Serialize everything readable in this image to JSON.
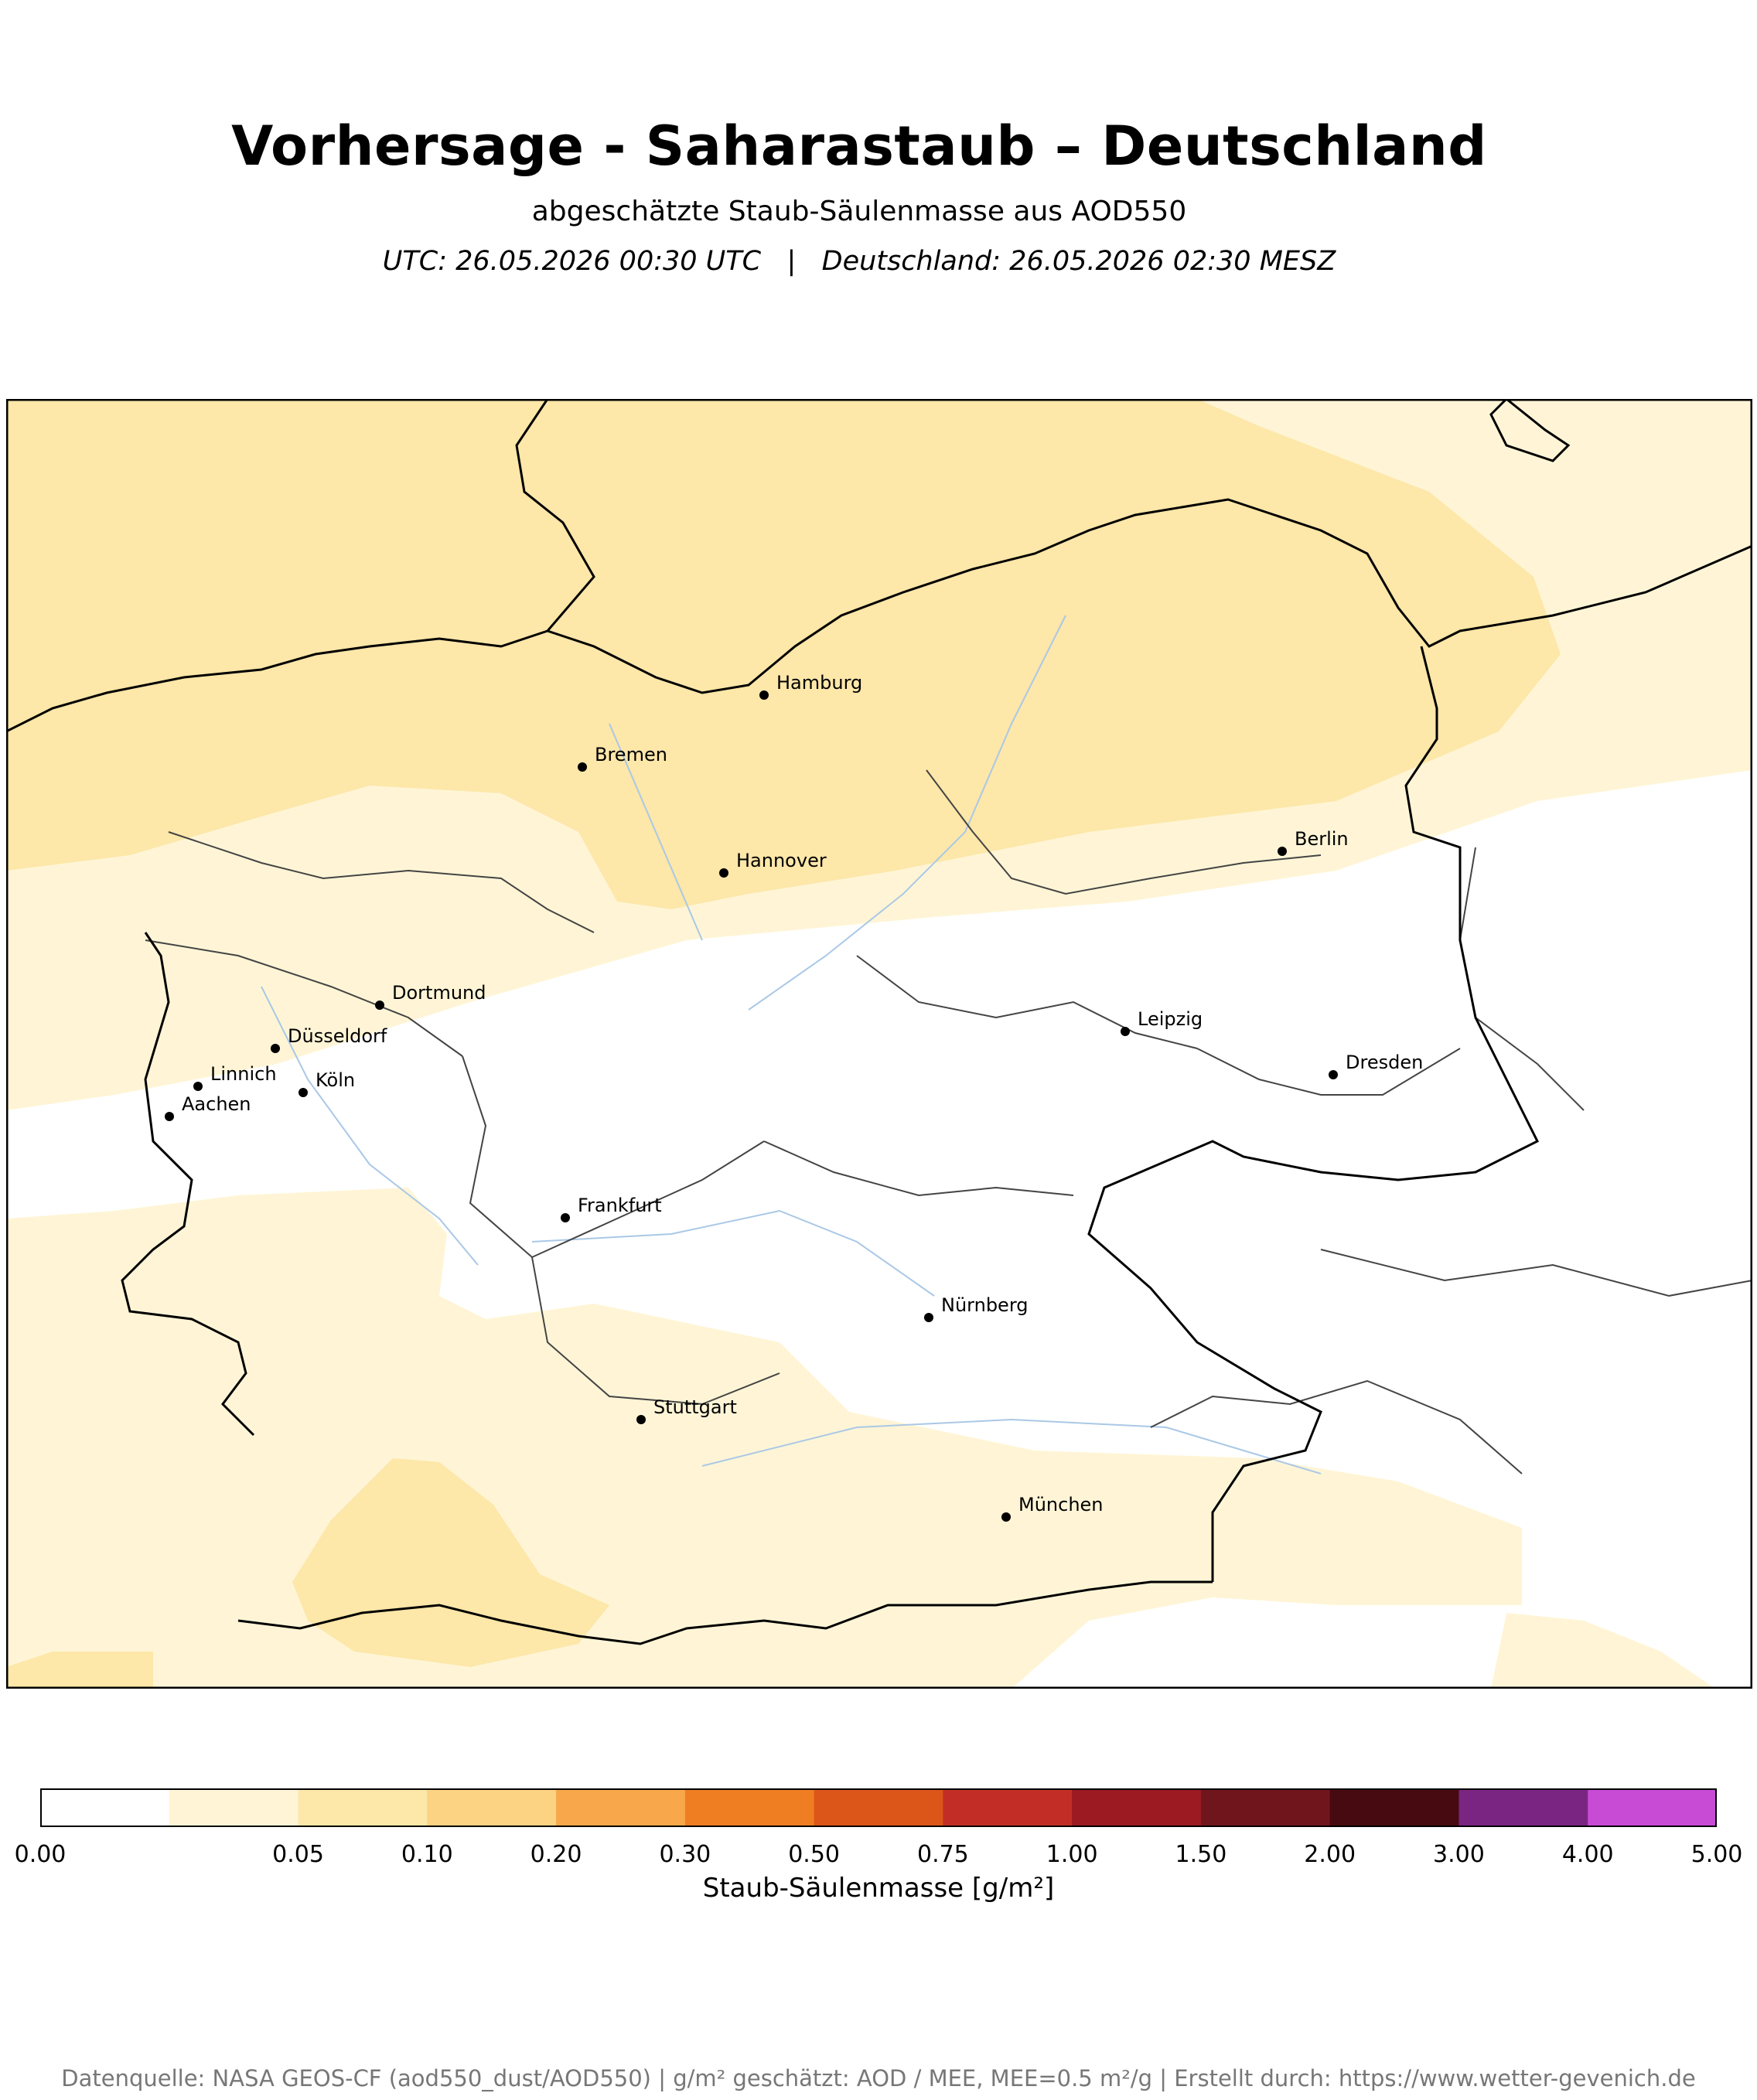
{
  "header": {
    "title": "Vorhersage - Saharastaub – Deutschland",
    "subtitle": "abgeschätzte Staub-Säulenmasse aus AOD550",
    "time_line": "UTC: 26.05.2026 00:30 UTC   |   Deutschland: 26.05.2026 02:30 MESZ"
  },
  "map": {
    "cities": [
      {
        "name": "Hamburg"
      },
      {
        "name": "Bremen"
      },
      {
        "name": "Hannover"
      },
      {
        "name": "Berlin"
      },
      {
        "name": "Dortmund"
      },
      {
        "name": "Düsseldorf"
      },
      {
        "name": "Linnich"
      },
      {
        "name": "Köln"
      },
      {
        "name": "Aachen"
      },
      {
        "name": "Leipzig"
      },
      {
        "name": "Dresden"
      },
      {
        "name": "Frankfurt"
      },
      {
        "name": "Nürnberg"
      },
      {
        "name": "Stuttgart"
      },
      {
        "name": "München"
      }
    ],
    "colors": {
      "level_1": "#fff5d6",
      "level_2": "#fde7a9",
      "border": "#000000",
      "admin_border": "#444444",
      "river": "#aac8e6"
    }
  },
  "colorbar": {
    "label": "Staub-Säulenmasse [g/m²]",
    "bins": [
      {
        "color": "#ffffff"
      },
      {
        "color": "#fff5d6"
      },
      {
        "color": "#fde7a9"
      },
      {
        "color": "#fcd283"
      },
      {
        "color": "#f8a84a"
      },
      {
        "color": "#ef7d22"
      },
      {
        "color": "#dc5519"
      },
      {
        "color": "#c22e25"
      },
      {
        "color": "#9c1a22"
      },
      {
        "color": "#71151c"
      },
      {
        "color": "#460a10"
      },
      {
        "color": "#7b2583"
      },
      {
        "color": "#c84bd5"
      }
    ],
    "ticks": [
      "0.00",
      "0.05",
      "0.10",
      "0.20",
      "0.30",
      "0.50",
      "0.75",
      "1.00",
      "1.50",
      "2.00",
      "3.00",
      "4.00",
      "5.00"
    ]
  },
  "footer": {
    "text": "Datenquelle: NASA GEOS-CF (aod550_dust/AOD550) | g/m² geschätzt: AOD / MEE, MEE=0.5 m²/g | Erstellt durch: https://www.wetter-gevenich.de"
  }
}
